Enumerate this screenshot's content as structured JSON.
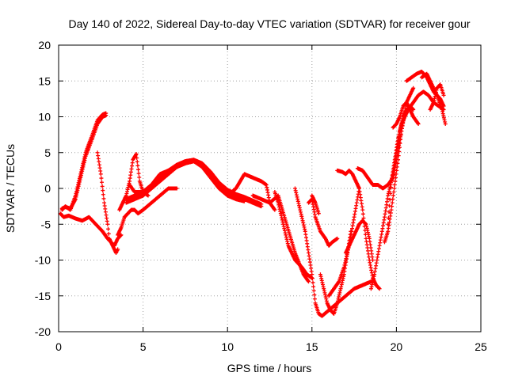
{
  "chart_data": {
    "type": "scatter",
    "title": "Day 140 of 2022, Sidereal Day-to-day VTEC variation (SDTVAR) for receiver gour",
    "xlabel": "GPS time / hours",
    "ylabel": "SDTVAR / TECUs",
    "xlim": [
      0,
      25
    ],
    "ylim": [
      -20,
      20
    ],
    "xticks": [
      "0",
      "5",
      "10",
      "15",
      "20",
      "25"
    ],
    "yticks": [
      "-20",
      "-15",
      "-10",
      "-5",
      "0",
      "5",
      "10",
      "15",
      "20"
    ],
    "x_tick_values": [
      0,
      5,
      10,
      15,
      20,
      25
    ],
    "y_tick_values": [
      -20,
      -15,
      -10,
      -5,
      0,
      5,
      10,
      15,
      20
    ],
    "grid": true,
    "marker": "+",
    "color": "#ff0000",
    "series": [
      {
        "x": [
          0.1,
          0.3,
          0.6,
          1.0,
          1.4,
          1.8,
          2.2,
          2.6,
          2.9,
          3.1,
          3.3,
          3.5,
          3.7
        ],
        "y": [
          -3.5,
          -4.0,
          -3.8,
          -4.2,
          -4.5,
          -4.0,
          -5.0,
          -6.0,
          -7.0,
          -7.5,
          -8.0,
          -7.0,
          -6.5
        ]
      },
      {
        "x": [
          0.2,
          0.4,
          0.7,
          1.0,
          1.3,
          1.6,
          2.0,
          2.3,
          2.6,
          2.8
        ],
        "y": [
          -3.0,
          -2.5,
          -3.0,
          -1.0,
          2.0,
          5.0,
          7.5,
          9.5,
          10.3,
          10.5
        ],
        "y_alt": [
          -2.8,
          -2.6,
          -2.8,
          -1.5,
          1.5,
          4.5,
          7.0,
          9.0,
          10.0,
          10.2
        ]
      },
      {
        "x": [
          2.3,
          2.5,
          2.7,
          2.9,
          3.0,
          3.2,
          3.4,
          3.5
        ],
        "y": [
          5.0,
          2.0,
          -2.0,
          -5.0,
          -7.0,
          -8.0,
          -9.0,
          -8.5
        ]
      },
      {
        "x": [
          3.5,
          3.7,
          3.9,
          4.1,
          4.3,
          4.5,
          4.7,
          5.0,
          5.5,
          6.0,
          6.5,
          7.0
        ],
        "y": [
          -6.5,
          -5.5,
          -4.0,
          -3.5,
          -3.0,
          -3.0,
          -3.5,
          -3.0,
          -2.0,
          -1.0,
          0.0,
          0.0
        ]
      },
      {
        "x": [
          3.6,
          3.8,
          4.0,
          4.2,
          4.4,
          4.6,
          4.8,
          5.0,
          5.3
        ],
        "y": [
          -3.0,
          -2.0,
          -1.0,
          1.0,
          4.0,
          4.8,
          1.0,
          -0.5,
          -1.0
        ]
      },
      {
        "x": [
          4.2,
          4.5,
          5.0,
          5.5,
          6.0,
          6.5,
          7.0,
          7.5,
          8.0,
          8.5,
          9.0,
          9.5,
          10.0,
          10.5,
          11.0
        ],
        "y": [
          0.5,
          -0.5,
          -0.5,
          0.5,
          2.0,
          2.5,
          3.0,
          3.5,
          3.8,
          3.0,
          1.5,
          0.0,
          -1.0,
          -1.5,
          -1.8
        ]
      },
      {
        "x": [
          4.0,
          4.5,
          5.0,
          5.5,
          6.0,
          6.5,
          7.0,
          7.5,
          8.0,
          8.5,
          9.0,
          9.5,
          10.0,
          10.5,
          11.0,
          11.5,
          12.0
        ],
        "y": [
          -2.0,
          -1.5,
          -1.0,
          0.0,
          1.0,
          2.0,
          3.0,
          3.5,
          3.8,
          3.2,
          2.0,
          0.5,
          -0.5,
          -1.0,
          -1.5,
          -2.0,
          -2.5
        ],
        "y_alt": [
          -1.5,
          -1.0,
          -0.5,
          0.5,
          1.5,
          2.5,
          3.3,
          3.8,
          4.0,
          3.5,
          2.3,
          0.8,
          -0.2,
          -0.8,
          -1.2,
          -1.7,
          -2.2
        ]
      },
      {
        "x": [
          10.0,
          10.5,
          11.0,
          11.5,
          12.0,
          12.3,
          12.5,
          12.8
        ],
        "y": [
          -1.0,
          0.0,
          2.0,
          1.5,
          1.0,
          0.5,
          -2.0,
          -3.0
        ]
      },
      {
        "x": [
          11.5,
          12.0,
          12.5,
          13.0,
          13.5,
          14.0,
          14.5,
          14.8
        ],
        "y": [
          -1.0,
          -1.5,
          -2.0,
          -1.0,
          -5.0,
          -9.0,
          -12.0,
          -13.0
        ]
      },
      {
        "x": [
          12.8,
          13.0,
          13.3,
          13.6,
          14.0,
          14.4,
          14.7,
          15.0
        ],
        "y": [
          -0.5,
          -2.0,
          -5.0,
          -8.0,
          -10.0,
          -11.0,
          -12.0,
          -12.5
        ]
      },
      {
        "x": [
          14.0,
          14.3,
          14.6,
          14.8,
          15.0,
          15.2,
          15.4,
          15.6,
          16.0,
          16.5,
          17.0,
          17.5,
          18.0,
          18.5
        ],
        "y": [
          0.0,
          -3.0,
          -6.0,
          -9.0,
          -12.0,
          -16.0,
          -17.5,
          -17.8,
          -17.0,
          -16.0,
          -15.0,
          -14.0,
          -13.5,
          -13.0
        ]
      },
      {
        "x": [
          14.8,
          15.0,
          15.2,
          15.5,
          15.8,
          16.0,
          16.2,
          16.5
        ],
        "y": [
          -2.0,
          -1.5,
          -4.0,
          -6.0,
          -7.0,
          -8.0,
          -7.5,
          -7.0
        ]
      },
      {
        "x": [
          15.0,
          15.2,
          15.4
        ],
        "y": [
          -1.0,
          -2.0,
          -3.5
        ]
      },
      {
        "x": [
          15.5,
          15.7,
          15.9,
          16.1,
          16.3,
          16.5,
          16.7,
          16.9,
          17.1,
          17.3
        ],
        "y": [
          -12.0,
          -14.0,
          -16.0,
          -17.0,
          -17.5,
          -16.0,
          -14.0,
          -12.0,
          -9.0,
          -6.0
        ]
      },
      {
        "x": [
          16.0,
          16.3,
          16.6,
          16.9,
          17.2,
          17.5,
          17.8
        ],
        "y": [
          -15.0,
          -14.0,
          -13.0,
          -11.0,
          -8.0,
          -4.0,
          0.0
        ]
      },
      {
        "x": [
          16.5,
          16.8,
          17.0,
          17.2,
          17.4,
          17.6,
          17.8,
          18.0,
          18.2,
          18.4,
          18.6,
          18.8,
          19.0
        ],
        "y": [
          2.5,
          2.3,
          2.0,
          2.5,
          2.0,
          1.0,
          0.0,
          -3.0,
          -7.0,
          -10.0,
          -12.5,
          -13.5,
          -14.0
        ]
      },
      {
        "x": [
          17.0,
          17.2,
          17.4,
          17.6,
          17.8,
          18.0,
          18.2,
          18.4,
          18.6
        ],
        "y": [
          -9.0,
          -8.0,
          -7.0,
          -6.0,
          -5.0,
          -4.5,
          -5.0,
          -7.0,
          -10.0
        ]
      },
      {
        "x": [
          17.7,
          18.0,
          18.3,
          18.6,
          18.9,
          19.2,
          19.5,
          19.8,
          20.0,
          20.3,
          20.6,
          21.0
        ],
        "y": [
          2.8,
          2.5,
          1.5,
          0.5,
          0.5,
          0.0,
          0.5,
          1.5,
          4.0,
          8.0,
          12.0,
          14.0
        ]
      },
      {
        "x": [
          18.5,
          18.7,
          19.0,
          19.3,
          19.5,
          19.8,
          20.0,
          20.2,
          20.4,
          20.6
        ],
        "y": [
          -14.0,
          -12.0,
          -8.0,
          -4.0,
          -1.0,
          2.0,
          5.0,
          8.0,
          10.0,
          11.0
        ]
      },
      {
        "x": [
          19.3,
          19.5,
          19.7,
          19.9,
          20.1,
          20.3,
          20.5,
          20.8,
          21.0
        ],
        "y": [
          -7.5,
          -6.0,
          -3.0,
          0.5,
          4.0,
          8.0,
          10.5,
          11.5,
          11.0
        ]
      },
      {
        "x": [
          19.5,
          19.7,
          19.9,
          20.1,
          20.3,
          20.5,
          20.7,
          21.0,
          21.3,
          21.6,
          21.9,
          22.2,
          22.5,
          22.8
        ],
        "y": [
          -5.0,
          1.0,
          4.0,
          7.0,
          9.0,
          10.0,
          11.0,
          12.0,
          13.0,
          13.5,
          13.0,
          12.0,
          11.5,
          11.0
        ]
      },
      {
        "x": [
          19.8,
          20.0,
          20.2,
          20.4,
          20.6,
          20.8,
          21.0,
          21.3
        ],
        "y": [
          8.5,
          9.0,
          10.0,
          11.5,
          12.0,
          11.0,
          10.0,
          9.0
        ]
      },
      {
        "x": [
          20.6,
          20.9,
          21.2,
          21.5,
          21.8,
          22.0,
          22.2,
          22.4,
          22.6,
          22.8
        ],
        "y": [
          15.0,
          15.5,
          16.0,
          16.3,
          15.5,
          14.5,
          13.5,
          13.0,
          12.5,
          11.5
        ]
      },
      {
        "x": [
          21.5,
          21.8,
          22.1,
          22.4,
          22.7,
          22.9
        ],
        "y": [
          15.5,
          16.0,
          14.5,
          13.0,
          11.0,
          9.0
        ]
      },
      {
        "x": [
          22.0,
          22.2,
          22.4,
          22.6,
          22.8
        ],
        "y": [
          11.0,
          12.0,
          14.0,
          14.5,
          13.0
        ]
      }
    ]
  }
}
